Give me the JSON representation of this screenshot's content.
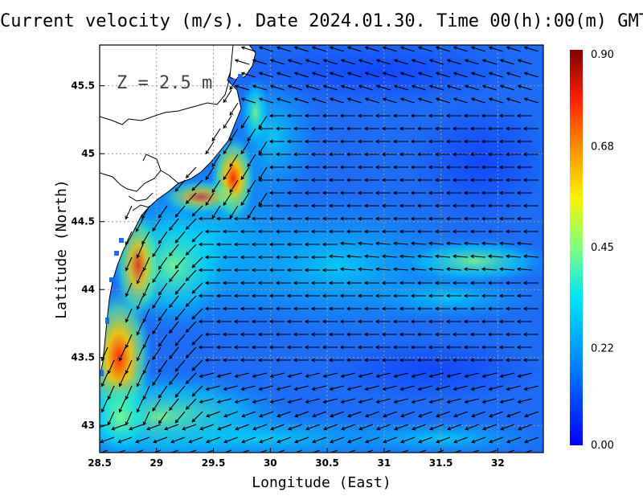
{
  "title": "Current velocity (m/s). Date 2024.01.30. Time 00(h):00(m) GMT",
  "depth_label": "Z = 2.5 m",
  "x_axis": {
    "label": "Longitude (East)",
    "ticks": [
      "28.5",
      "29",
      "29.5",
      "30",
      "30.5",
      "31",
      "31.5",
      "32"
    ],
    "range": [
      28.5,
      32.4
    ]
  },
  "y_axis": {
    "label": "Latitude (North)",
    "ticks": [
      "43",
      "43.5",
      "44",
      "44.5",
      "45",
      "45.5"
    ],
    "range": [
      42.8,
      45.8
    ]
  },
  "colorbar": {
    "ticks": [
      "0.00",
      "0.22",
      "0.45",
      "0.68",
      "0.90"
    ],
    "min": 0.0,
    "max": 0.9,
    "colormap": "jet"
  },
  "grid": "dotted",
  "colors": {
    "land": "#ffffff",
    "coastline": "#000000",
    "arrows": "#000000"
  }
}
